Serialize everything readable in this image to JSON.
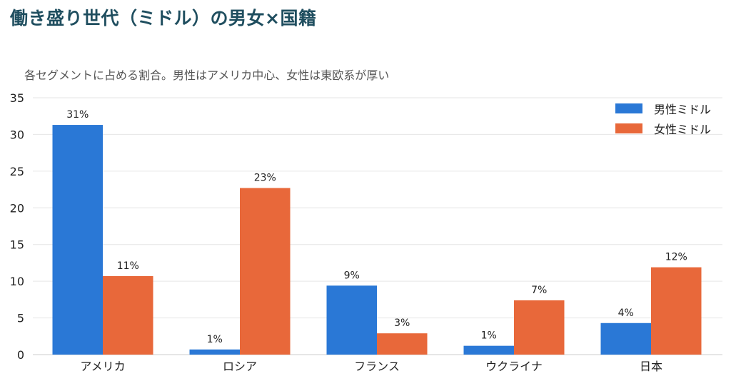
{
  "title": "働き盛り世代（ミドル）の男女×国籍",
  "subtitle": "各セグメントに占める割合。男性はアメリカ中心、女性は東欧系が厚い",
  "chart_data": {
    "type": "bar",
    "categories": [
      "アメリカ",
      "ロシア",
      "フランス",
      "ウクライナ",
      "日本"
    ],
    "series": [
      {
        "name": "男性ミドル",
        "color": "#2a78d6",
        "values": [
          31.3,
          0.7,
          9.4,
          1.2,
          4.3
        ],
        "labels": [
          "31%",
          "1%",
          "9%",
          "1%",
          "4%"
        ]
      },
      {
        "name": "女性ミドル",
        "color": "#e8683a",
        "values": [
          10.7,
          22.7,
          2.9,
          7.4,
          11.9
        ],
        "labels": [
          "11%",
          "23%",
          "3%",
          "7%",
          "12%"
        ]
      }
    ],
    "ylim": [
      0,
      35
    ],
    "yticks": [
      0,
      5,
      10,
      15,
      20,
      25,
      30,
      35
    ],
    "grid": true,
    "legend": "top-right"
  }
}
